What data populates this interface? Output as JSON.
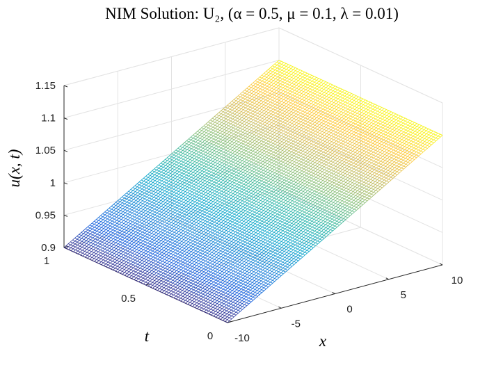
{
  "chart_data": {
    "type": "surface",
    "title": "NIM Solution: U₂, (α = 0.5,  μ = 0.1,  λ = 0.01)",
    "xlabel": "x",
    "ylabel": "t",
    "zlabel": "u(x, t)",
    "xlim": [
      -10,
      10
    ],
    "ylim": [
      0,
      1
    ],
    "zlim": [
      0.9,
      1.15
    ],
    "x_ticks": [
      "-10",
      "-5",
      "0",
      "5",
      "10"
    ],
    "y_ticks": [
      "0",
      "0.5",
      "1"
    ],
    "z_ticks": [
      "0.9",
      "0.95",
      "1",
      "1.05",
      "1.1",
      "1.15"
    ],
    "grid": true,
    "colormap": "parula",
    "colormap_stops": [
      "#352a87",
      "#0f5cdd",
      "#1481d6",
      "#06a4ca",
      "#2eb7a4",
      "#87bf77",
      "#d1bb59",
      "#fec832",
      "#f9fb0e"
    ],
    "surface": {
      "corners": [
        {
          "x": -10,
          "t": 0,
          "u": 0.9
        },
        {
          "x": 10,
          "t": 0,
          "u": 1.1
        },
        {
          "x": -10,
          "t": 1,
          "u": 0.9
        },
        {
          "x": 10,
          "t": 1,
          "u": 1.1
        }
      ]
    }
  }
}
